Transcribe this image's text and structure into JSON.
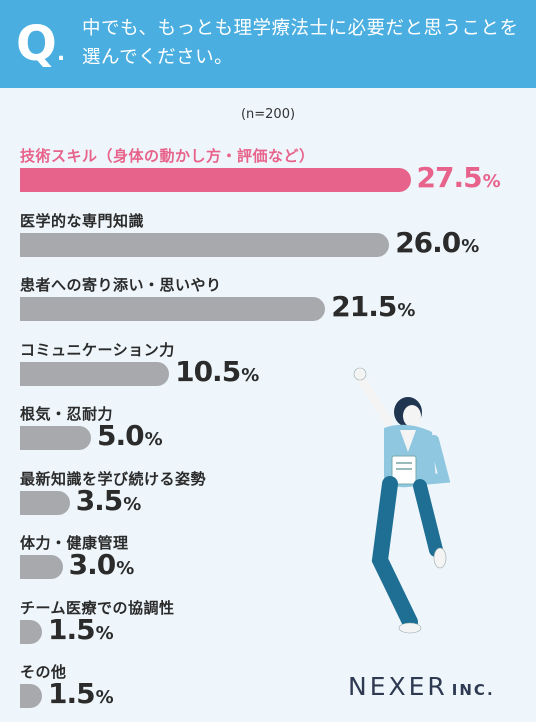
{
  "header": {
    "q_letter": "Q",
    "q_dot": ".",
    "question": "中でも、もっとも理学療法士に必要だと思うことを選んでください。"
  },
  "sample_note": "(n=200)",
  "logo": {
    "name": "NEXER",
    "suffix": "INC."
  },
  "colors": {
    "header": "#4aaee0",
    "highlight": "#e8638b",
    "bar": "#a7a9ac",
    "background": "#eef6fb"
  },
  "chart_data": {
    "type": "bar",
    "orientation": "horizontal",
    "unit": "%",
    "categories": [
      "技術スキル（身体の動かし方・評価など）",
      "医学的な専門知識",
      "患者への寄り添い・思いやり",
      "コミュニケーション力",
      "根気・忍耐力",
      "最新知識を学び続ける姿勢",
      "体力・健康管理",
      "チーム医療での協調性",
      "その他"
    ],
    "values": [
      27.5,
      26.0,
      21.5,
      10.5,
      5.0,
      3.5,
      3.0,
      1.5,
      1.5
    ],
    "value_labels": [
      "27.5",
      "26.0",
      "21.5",
      "10.5",
      "5.0",
      "3.5",
      "3.0",
      "1.5",
      "1.5"
    ],
    "highlight_index": 0
  }
}
